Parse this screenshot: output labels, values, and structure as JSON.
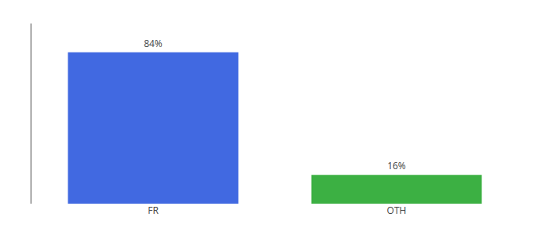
{
  "chart_data": {
    "type": "bar",
    "categories": [
      "FR",
      "OTH"
    ],
    "values": [
      84,
      16
    ],
    "value_labels": [
      "84%",
      "16%"
    ],
    "data_labels": true,
    "colors": [
      "#4169e1",
      "#3cb043"
    ],
    "ylim": [
      0,
      100
    ],
    "grid": false,
    "tick_labels": "x"
  }
}
